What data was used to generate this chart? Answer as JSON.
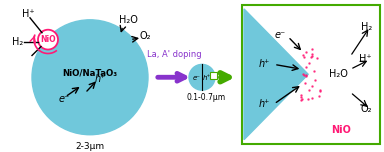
{
  "bg_color": "#ffffff",
  "sphere_color": "#70c8db",
  "nio_color_red": "#ff1a75",
  "arrow_purple": "#8833cc",
  "arrow_green": "#44aa00",
  "box_border": "#44aa00",
  "nio_text_red": "NiO",
  "main_label": "NiO/NaTaO₃",
  "size_label": "2-3μm",
  "doping_label": "La, A' doping",
  "small_size_label": "0.1-0.7μm"
}
